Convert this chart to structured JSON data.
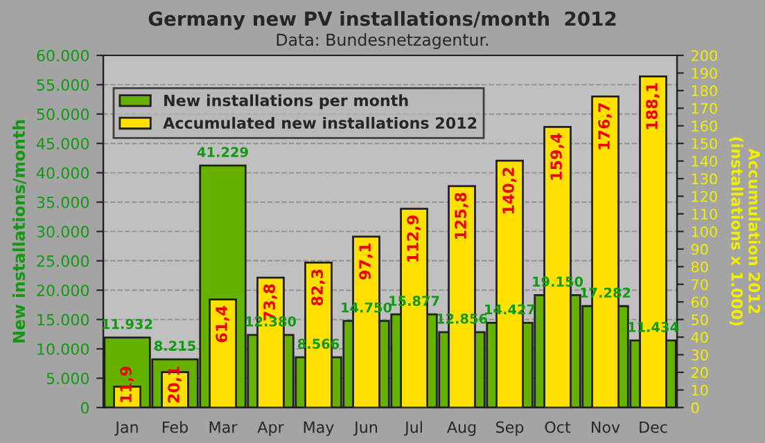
{
  "chart_data": {
    "type": "bar",
    "title": "Germany new PV installations/month  2012",
    "subtitle": "Data: Bundesnetzagentur.",
    "ylabel": "New installations/month",
    "y2label": "Accumulation 2012\n(installations x 1.000)",
    "categories": [
      "Jan",
      "Feb",
      "Mar",
      "Apr",
      "May",
      "Jun",
      "Jul",
      "Aug",
      "Sep",
      "Oct",
      "Nov",
      "Dec"
    ],
    "series": [
      {
        "name": "New installations per month",
        "color": "#66b000",
        "values": [
          11932,
          8215,
          41229,
          12380,
          8566,
          14750,
          15877,
          12856,
          14427,
          19150,
          17282,
          11434
        ],
        "value_labels": [
          "11.932",
          "8.215",
          "41.229",
          "12.380",
          "8.566",
          "14.750",
          "15.877",
          "12.856",
          "14.427",
          "19.150",
          "17.282",
          "11.434"
        ]
      },
      {
        "name": "Accumulated new installations 2012",
        "color": "#ffe000",
        "axis": "y2",
        "values": [
          11.9,
          20.1,
          61.4,
          73.8,
          82.3,
          97.1,
          112.9,
          125.8,
          140.2,
          159.4,
          176.7,
          188.1
        ],
        "value_labels": [
          "11,9",
          "20,1",
          "61,4",
          "73,8",
          "82,3",
          "97,1",
          "112,9",
          "125,8",
          "140,2",
          "159,4",
          "176,7",
          "188,1"
        ]
      }
    ],
    "ylim": [
      0,
      60000
    ],
    "yticks": [
      {
        "value": 0,
        "label": "0"
      },
      {
        "value": 5000,
        "label": "5.000"
      },
      {
        "value": 10000,
        "label": "10.000"
      },
      {
        "value": 15000,
        "label": "15.000"
      },
      {
        "value": 20000,
        "label": "20.000"
      },
      {
        "value": 25000,
        "label": "25.000"
      },
      {
        "value": 30000,
        "label": "30.000"
      },
      {
        "value": 35000,
        "label": "35.000"
      },
      {
        "value": 40000,
        "label": "40.000"
      },
      {
        "value": 45000,
        "label": "45.000"
      },
      {
        "value": 50000,
        "label": "50.000"
      },
      {
        "value": 55000,
        "label": "55.000"
      },
      {
        "value": 60000,
        "label": "60.000"
      }
    ],
    "y2lim": [
      0,
      200
    ],
    "y2ticks": [
      0,
      10,
      20,
      30,
      40,
      50,
      60,
      70,
      80,
      90,
      100,
      110,
      120,
      130,
      140,
      150,
      160,
      170,
      180,
      190,
      200
    ],
    "grid": "y",
    "legend": "top left"
  }
}
